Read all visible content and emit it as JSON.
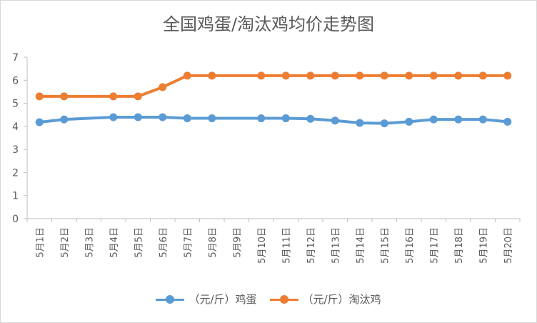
{
  "chart_data": {
    "type": "line",
    "title": "全国鸡蛋/淘汰鸡均价走势图",
    "categories": [
      "5月1日",
      "5月2日",
      "5月3日",
      "5月4日",
      "5月5日",
      "5月6日",
      "5月7日",
      "5月8日",
      "5月9日",
      "5月10日",
      "5月11日",
      "5月12日",
      "5月13日",
      "5月14日",
      "5月15日",
      "5月16日",
      "5月17日",
      "5月18日",
      "5月19日",
      "5月20日"
    ],
    "y_ticks": [
      "0",
      "1",
      "2",
      "3",
      "4",
      "5",
      "6",
      "7"
    ],
    "ylim": [
      0,
      7
    ],
    "grid": false,
    "legend_position": "bottom",
    "series": [
      {
        "name": "（元/斤）鸡蛋",
        "color": "#5b9bd5",
        "values": [
          4.18,
          4.3,
          null,
          4.4,
          4.4,
          4.4,
          4.35,
          4.35,
          null,
          4.35,
          4.35,
          4.33,
          4.25,
          4.15,
          4.13,
          4.2,
          4.3,
          4.3,
          4.3,
          4.2
        ]
      },
      {
        "name": "（元/斤）淘汰鸡",
        "color": "#ed7d31",
        "values": [
          5.3,
          5.3,
          null,
          5.3,
          5.3,
          5.7,
          6.2,
          6.2,
          null,
          6.2,
          6.2,
          6.2,
          6.2,
          6.2,
          6.2,
          6.2,
          6.2,
          6.2,
          6.2,
          6.2
        ]
      }
    ]
  }
}
